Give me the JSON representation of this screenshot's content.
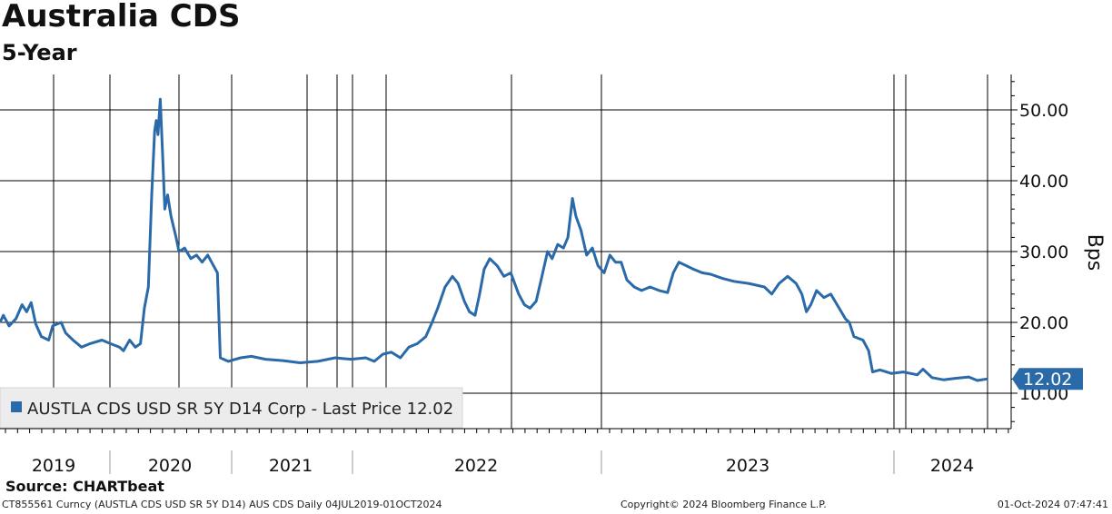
{
  "chart_data": {
    "type": "line",
    "title": "Australia CDS",
    "subtitle": "5-Year",
    "ylabel": "Bps",
    "ylim": [
      5,
      55
    ],
    "y_ticks": [
      "10.00",
      "20.00",
      "30.00",
      "40.00",
      "50.00"
    ],
    "year_labels": [
      "2019",
      "2020",
      "2021",
      "2022",
      "2023",
      "2024"
    ],
    "grid": true,
    "legend": "bottom-left",
    "series": [
      {
        "name": "AUSTLA CDS USD SR 5Y D14 Corp - Last Price 12.02",
        "color": "#2b6aa8",
        "last_value": "12.02",
        "points": [
          [
            "2019-07-04",
            20.0
          ],
          [
            "2019-07-10",
            21.0
          ],
          [
            "2019-07-20",
            19.5
          ],
          [
            "2019-08-01",
            20.5
          ],
          [
            "2019-08-12",
            22.5
          ],
          [
            "2019-08-20",
            21.5
          ],
          [
            "2019-08-28",
            22.8
          ],
          [
            "2019-09-05",
            19.8
          ],
          [
            "2019-09-15",
            18.0
          ],
          [
            "2019-09-28",
            17.5
          ],
          [
            "2019-10-05",
            19.5
          ],
          [
            "2019-10-20",
            20.0
          ],
          [
            "2019-10-28",
            18.5
          ],
          [
            "2019-11-10",
            17.5
          ],
          [
            "2019-11-25",
            16.5
          ],
          [
            "2019-12-10",
            17.0
          ],
          [
            "2019-12-31",
            17.5
          ],
          [
            "2020-01-15",
            17.0
          ],
          [
            "2020-01-31",
            16.5
          ],
          [
            "2020-02-07",
            16.0
          ],
          [
            "2020-02-18",
            17.5
          ],
          [
            "2020-02-28",
            16.5
          ],
          [
            "2020-03-08",
            17.0
          ],
          [
            "2020-03-15",
            22.0
          ],
          [
            "2020-03-22",
            25.0
          ],
          [
            "2020-03-28",
            38.0
          ],
          [
            "2020-04-02",
            47.0
          ],
          [
            "2020-04-05",
            48.5
          ],
          [
            "2020-04-08",
            46.5
          ],
          [
            "2020-04-12",
            51.5
          ],
          [
            "2020-04-16",
            44.0
          ],
          [
            "2020-04-20",
            36.0
          ],
          [
            "2020-04-25",
            38.0
          ],
          [
            "2020-05-01",
            35.0
          ],
          [
            "2020-05-10",
            32.0
          ],
          [
            "2020-05-15",
            30.0
          ],
          [
            "2020-05-25",
            30.5
          ],
          [
            "2020-06-05",
            29.0
          ],
          [
            "2020-06-15",
            29.5
          ],
          [
            "2020-06-25",
            28.5
          ],
          [
            "2020-07-05",
            29.5
          ],
          [
            "2020-07-15",
            28.0
          ],
          [
            "2020-07-22",
            27.0
          ],
          [
            "2020-07-27",
            15.0
          ],
          [
            "2020-08-10",
            14.5
          ],
          [
            "2020-09-01",
            15.0
          ],
          [
            "2020-09-20",
            15.2
          ],
          [
            "2020-10-15",
            14.8
          ],
          [
            "2020-11-15",
            14.6
          ],
          [
            "2020-12-15",
            14.3
          ],
          [
            "2021-01-15",
            14.5
          ],
          [
            "2021-02-15",
            15.0
          ],
          [
            "2021-03-15",
            14.8
          ],
          [
            "2021-04-10",
            15.0
          ],
          [
            "2021-04-25",
            14.5
          ],
          [
            "2021-05-10",
            15.5
          ],
          [
            "2021-05-25",
            15.8
          ],
          [
            "2021-06-10",
            15.0
          ],
          [
            "2021-06-25",
            16.5
          ],
          [
            "2021-07-10",
            17.0
          ],
          [
            "2021-07-25",
            18.0
          ],
          [
            "2021-08-05",
            20.0
          ],
          [
            "2021-08-15",
            22.0
          ],
          [
            "2021-08-28",
            25.0
          ],
          [
            "2021-09-10",
            26.5
          ],
          [
            "2021-09-20",
            25.5
          ],
          [
            "2021-10-01",
            23.0
          ],
          [
            "2021-10-10",
            21.5
          ],
          [
            "2021-10-20",
            21.0
          ],
          [
            "2021-10-28",
            24.0
          ],
          [
            "2021-11-05",
            27.5
          ],
          [
            "2021-11-15",
            29.0
          ],
          [
            "2021-11-28",
            28.0
          ],
          [
            "2021-12-10",
            26.5
          ],
          [
            "2021-12-22",
            27.0
          ],
          [
            "2022-01-05",
            24.0
          ],
          [
            "2022-01-15",
            22.5
          ],
          [
            "2022-01-25",
            22.0
          ],
          [
            "2022-02-05",
            23.0
          ],
          [
            "2022-02-15",
            26.5
          ],
          [
            "2022-02-25",
            30.0
          ],
          [
            "2022-03-05",
            29.0
          ],
          [
            "2022-03-15",
            31.0
          ],
          [
            "2022-03-25",
            30.5
          ],
          [
            "2022-04-02",
            32.0
          ],
          [
            "2022-04-10",
            37.5
          ],
          [
            "2022-04-16",
            35.0
          ],
          [
            "2022-04-25",
            33.0
          ],
          [
            "2022-05-05",
            29.5
          ],
          [
            "2022-05-15",
            30.5
          ],
          [
            "2022-05-25",
            28.0
          ],
          [
            "2022-06-05",
            27.0
          ],
          [
            "2022-06-15",
            29.5
          ],
          [
            "2022-06-25",
            28.5
          ],
          [
            "2022-07-05",
            28.5
          ],
          [
            "2022-07-15",
            26.0
          ],
          [
            "2022-07-28",
            25.0
          ],
          [
            "2022-08-10",
            24.5
          ],
          [
            "2022-08-25",
            25.0
          ],
          [
            "2022-09-10",
            24.5
          ],
          [
            "2022-09-25",
            24.2
          ],
          [
            "2022-10-05",
            27.0
          ],
          [
            "2022-10-15",
            28.5
          ],
          [
            "2022-10-28",
            28.0
          ],
          [
            "2022-11-10",
            27.5
          ],
          [
            "2022-11-25",
            27.0
          ],
          [
            "2022-12-10",
            26.8
          ],
          [
            "2022-12-31",
            26.2
          ],
          [
            "2023-01-20",
            25.8
          ],
          [
            "2023-02-15",
            25.5
          ],
          [
            "2023-03-15",
            25.0
          ],
          [
            "2023-03-28",
            24.0
          ],
          [
            "2023-04-10",
            25.5
          ],
          [
            "2023-04-25",
            26.5
          ],
          [
            "2023-05-10",
            25.5
          ],
          [
            "2023-05-20",
            24.0
          ],
          [
            "2023-05-28",
            21.5
          ],
          [
            "2023-06-05",
            22.5
          ],
          [
            "2023-06-15",
            24.5
          ],
          [
            "2023-06-28",
            23.5
          ],
          [
            "2023-07-10",
            24.0
          ],
          [
            "2023-07-25",
            22.0
          ],
          [
            "2023-08-05",
            20.5
          ],
          [
            "2023-08-12",
            20.0
          ],
          [
            "2023-08-20",
            18.0
          ],
          [
            "2023-09-05",
            17.5
          ],
          [
            "2023-09-15",
            16.0
          ],
          [
            "2023-09-22",
            13.0
          ],
          [
            "2023-10-05",
            13.3
          ],
          [
            "2023-10-25",
            12.8
          ],
          [
            "2023-11-15",
            13.0
          ],
          [
            "2023-12-10",
            12.6
          ],
          [
            "2023-12-20",
            13.4
          ],
          [
            "2024-01-05",
            12.2
          ],
          [
            "2024-01-25",
            11.9
          ],
          [
            "2024-02-15",
            12.1
          ],
          [
            "2024-03-10",
            12.3
          ],
          [
            "2024-03-25",
            11.8
          ],
          [
            "2024-04-12",
            12.02
          ]
        ]
      }
    ]
  },
  "source": "Source: CHARTbeat",
  "footer": {
    "left": "CT855561 Curncy (AUSTLA CDS USD SR 5Y D14) AUS CDS  Daily 04JUL2019-01OCT2024",
    "center": "Copyright© 2024 Bloomberg Finance L.P.",
    "right": "01-Oct-2024 07:47:41"
  }
}
